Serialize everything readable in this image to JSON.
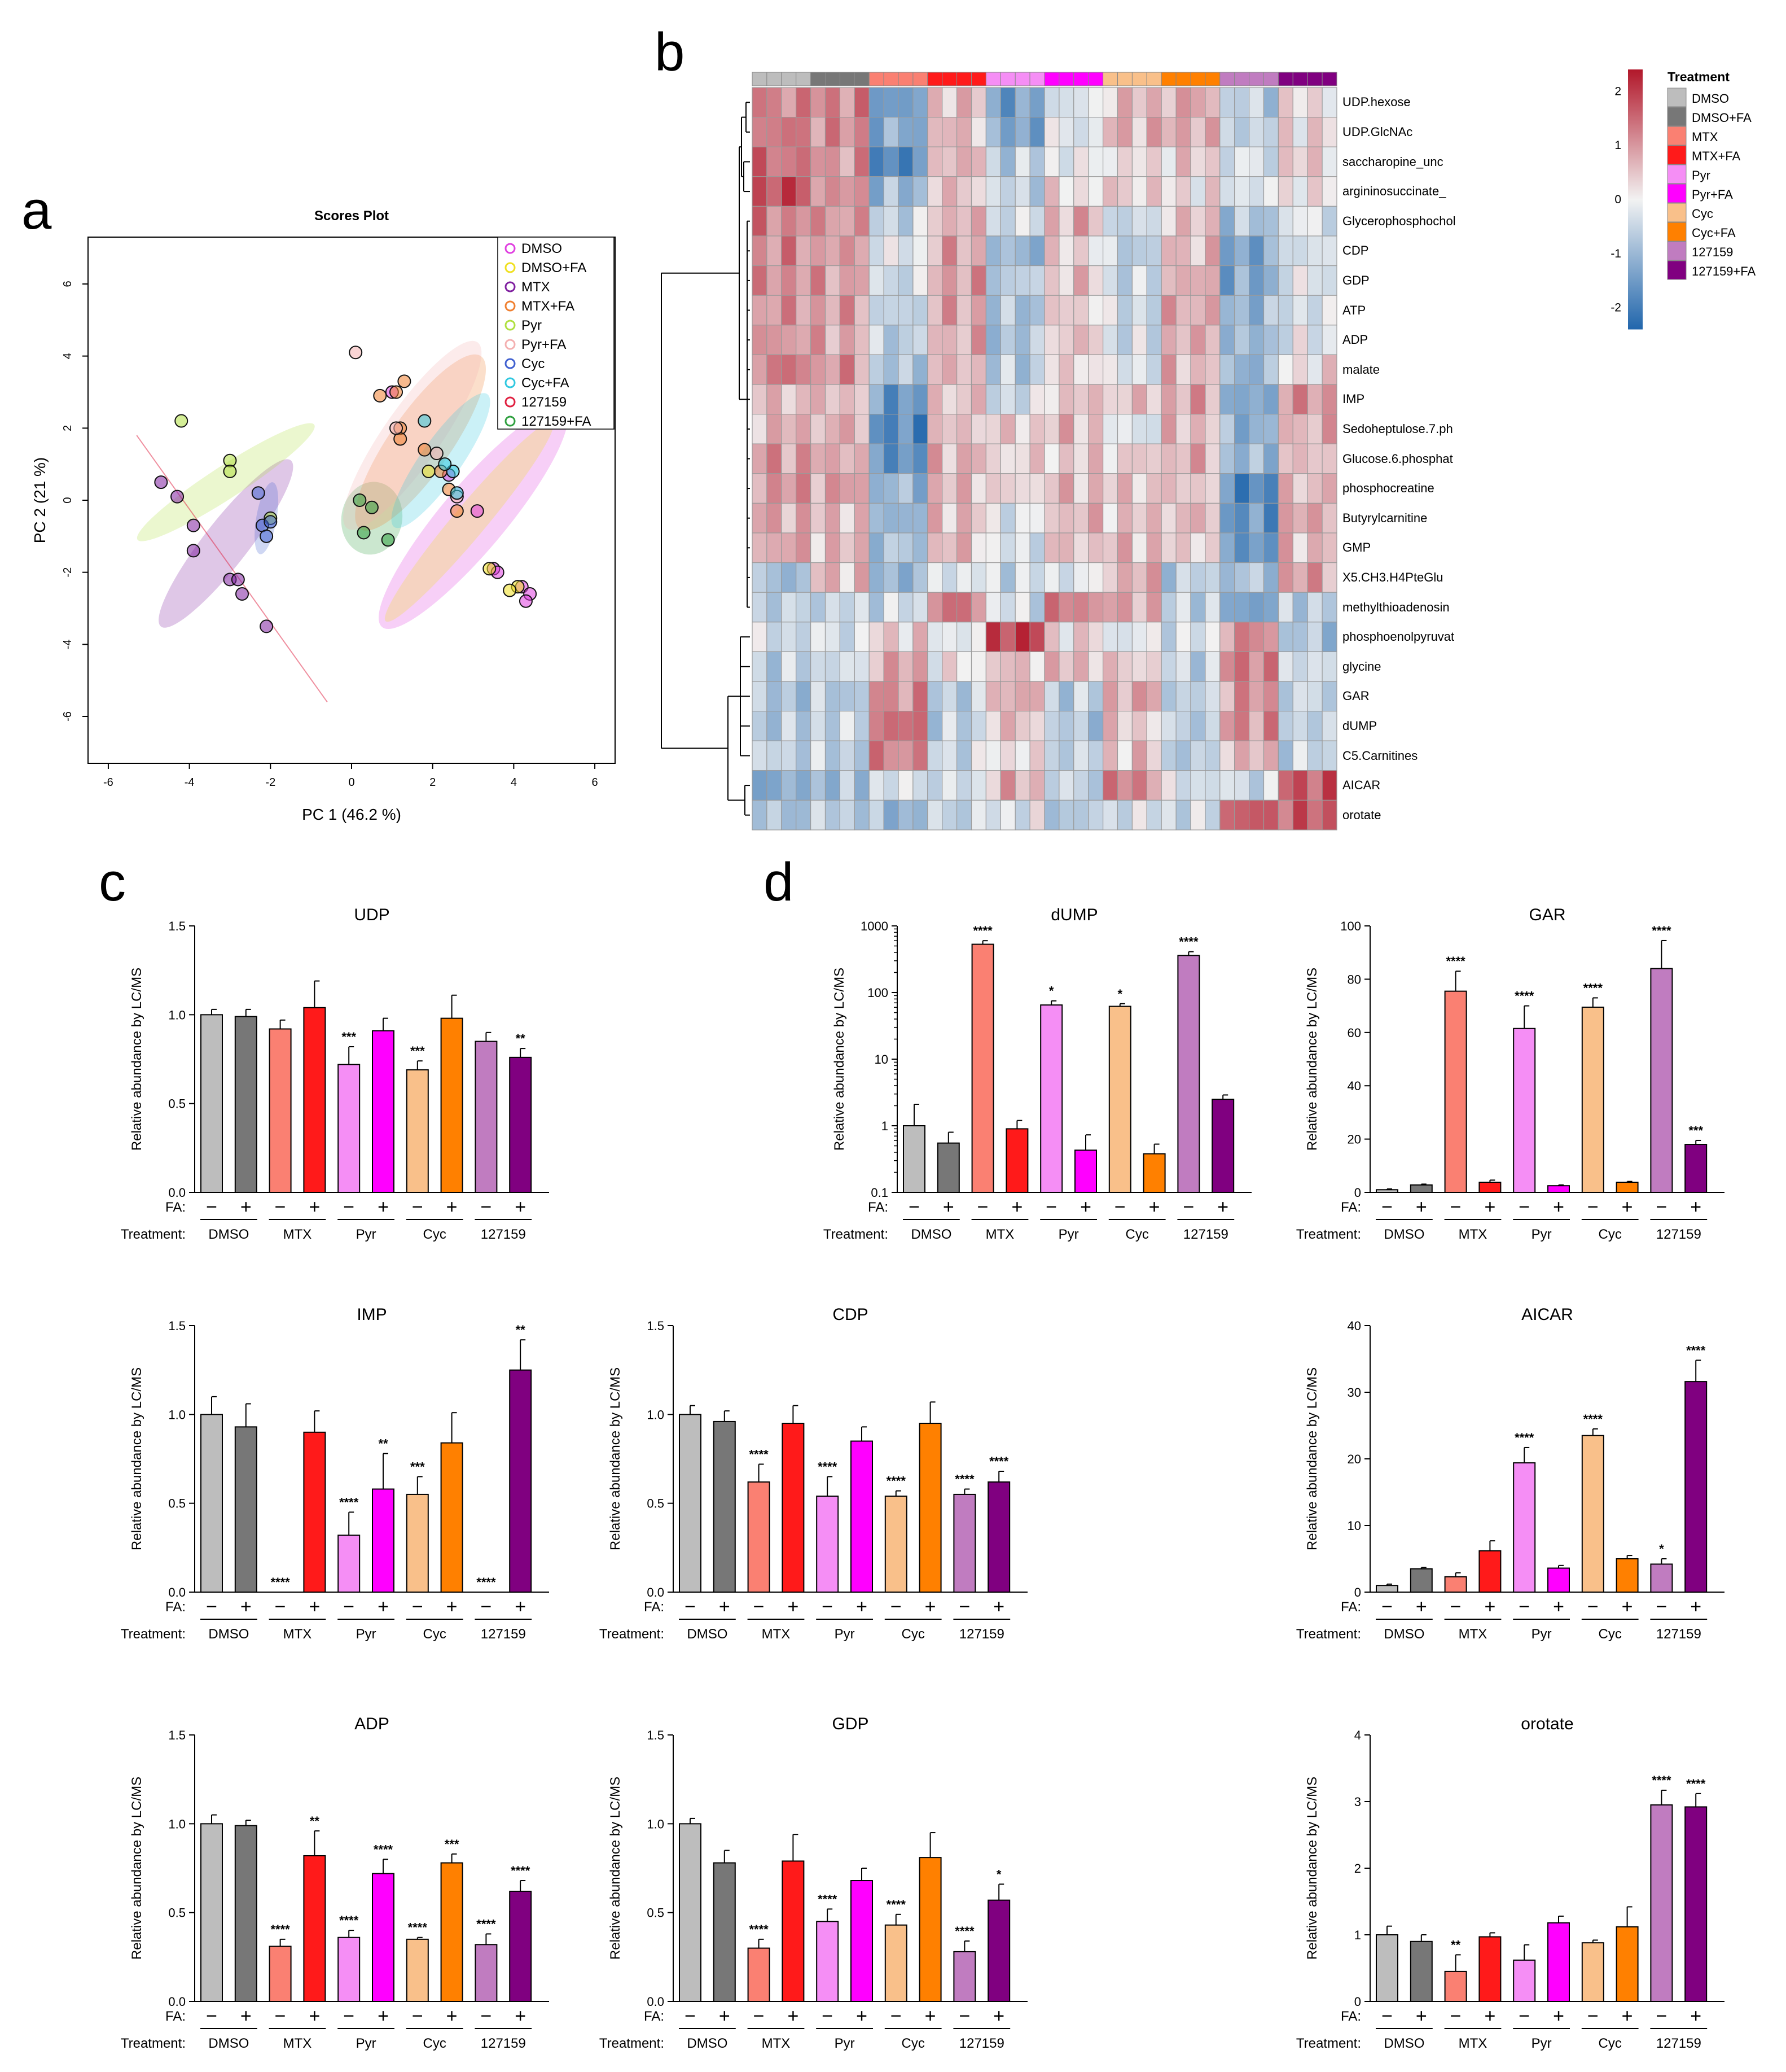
{
  "panels": {
    "a": "a",
    "b": "b",
    "c": "c",
    "d": "d"
  },
  "colors": {
    "DMSO": "#bdbdbd",
    "DMSO+FA": "#777777",
    "MTX": "#fa8072",
    "MTX+FA": "#ff1a1a",
    "Pyr": "#f58ef5",
    "Pyr+FA": "#ff00ff",
    "Cyc": "#f9c08a",
    "Cyc+FA": "#ff8000",
    "127159": "#c07cc0",
    "127159+FA": "#800080",
    "heat_low": "#2166ac",
    "heat_mid": "#f2f2f2",
    "heat_high": "#b2182b",
    "pca_DMSO": "#e040e0",
    "pca_DMSO+FA": "#f0e020",
    "pca_MTX": "#8020a0",
    "pca_MTX+FA": "#f08030",
    "pca_Pyr": "#b0e040",
    "pca_Pyr+FA": "#f4b0b0",
    "pca_Cyc": "#4060d0",
    "pca_Cyc+FA": "#30c8e0",
    "pca_127159": "#e02040",
    "pca_127159+FA": "#30a040"
  },
  "chart_data": [
    {
      "id": "scores",
      "type": "scatter",
      "title": "Scores Plot",
      "xlabel": "PC 1 (46.2 %)",
      "ylabel": "PC 2 (21 %)",
      "xlim": [
        -6.5,
        6.5
      ],
      "ylim": [
        -7.3,
        7.3
      ],
      "xticks": [
        -6,
        -4,
        -2,
        0,
        2,
        4,
        6
      ],
      "yticks": [
        -6,
        -4,
        -2,
        0,
        2,
        4,
        6
      ],
      "legend": [
        "DMSO",
        "DMSO+FA",
        "MTX",
        "MTX+FA",
        "Pyr",
        "Pyr+FA",
        "Cyc",
        "Cyc+FA",
        "127159",
        "127159+FA"
      ],
      "series": [
        {
          "name": "MTX",
          "points": [
            [
              -4.7,
              0.5
            ],
            [
              -4.3,
              0.1
            ],
            [
              -3.9,
              -0.7
            ],
            [
              -3.9,
              -1.4
            ],
            [
              -3.0,
              -2.2
            ],
            [
              -2.8,
              -2.2
            ],
            [
              -2.7,
              -2.6
            ],
            [
              -2.1,
              -3.5
            ]
          ]
        },
        {
          "name": "Pyr",
          "points": [
            [
              -4.2,
              2.2
            ],
            [
              -3.0,
              1.1
            ],
            [
              -3.0,
              0.8
            ],
            [
              -2.0,
              -0.5
            ]
          ]
        },
        {
          "name": "Cyc",
          "points": [
            [
              -2.3,
              0.2
            ],
            [
              -2.2,
              -0.7
            ],
            [
              -2.1,
              -1.0
            ],
            [
              -2.0,
              -0.6
            ]
          ]
        },
        {
          "name": "127159+FA",
          "points": [
            [
              0.2,
              0.0
            ],
            [
              0.5,
              -0.2
            ],
            [
              0.9,
              -1.1
            ],
            [
              0.3,
              -0.9
            ]
          ]
        },
        {
          "name": "DMSO",
          "points": [
            [
              3.1,
              -0.3
            ],
            [
              3.5,
              -1.9
            ],
            [
              3.6,
              -2.0
            ],
            [
              4.2,
              -2.4
            ],
            [
              4.4,
              -2.6
            ],
            [
              4.3,
              -2.8
            ],
            [
              2.4,
              0.7
            ],
            [
              1.0,
              3.0
            ]
          ]
        },
        {
          "name": "MTX+FA",
          "points": [
            [
              0.7,
              2.9
            ],
            [
              1.3,
              3.3
            ],
            [
              1.1,
              3.0
            ],
            [
              1.2,
              2.0
            ],
            [
              1.2,
              1.7
            ],
            [
              2.2,
              0.8
            ],
            [
              2.4,
              0.3
            ],
            [
              1.8,
              1.4
            ],
            [
              2.6,
              -0.3
            ]
          ]
        },
        {
          "name": "Pyr+FA",
          "points": [
            [
              0.1,
              4.1
            ],
            [
              1.1,
              2.0
            ],
            [
              2.1,
              1.3
            ],
            [
              2.6,
              0.1
            ]
          ]
        },
        {
          "name": "Cyc+FA",
          "points": [
            [
              1.8,
              2.2
            ],
            [
              2.5,
              0.8
            ],
            [
              2.3,
              1.0
            ],
            [
              2.6,
              0.2
            ]
          ]
        },
        {
          "name": "DMSO+FA",
          "points": [
            [
              3.4,
              -1.9
            ],
            [
              4.1,
              -2.4
            ],
            [
              3.9,
              -2.5
            ],
            [
              1.9,
              0.8
            ]
          ]
        }
      ]
    },
    {
      "id": "heatmap",
      "type": "heatmap",
      "legend_title": "Treatment",
      "legend_items": [
        "DMSO",
        "DMSO+FA",
        "MTX",
        "MTX+FA",
        "Pyr",
        "Pyr+FA",
        "Cyc",
        "Cyc+FA",
        "127159",
        "127159+FA"
      ],
      "colorbar_ticks": [
        "2",
        "1",
        "0",
        "-1",
        "-2"
      ],
      "metabolites": [
        "UDP.hexose",
        "UDP.GlcNAc",
        "saccharopine_unc",
        "argininosuccinate_",
        "Glycerophosphochol",
        "CDP",
        "GDP",
        "ATP",
        "ADP",
        "malate",
        "IMP",
        "Sedoheptulose.7.ph",
        "Glucose.6.phosphat",
        "phosphocreatine",
        "Butyrylcarnitine",
        "GMP",
        "X5.CH3.H4PteGlu",
        "methylthioadenosin",
        "phosphoenolpyruvat",
        "glycine",
        "GAR",
        "dUMP",
        "C5.Carnitines",
        "AICAR",
        "orotate"
      ],
      "group_profile": [
        [
          1.2,
          1.2,
          -1.4,
          0.6,
          -1.4,
          -0.3,
          0.6,
          0.8,
          -0.6,
          0.2
        ],
        [
          1.3,
          1.1,
          -1.2,
          0.6,
          -1.3,
          -0.2,
          0.7,
          0.8,
          -0.5,
          0.3
        ],
        [
          1.4,
          1.0,
          -1.8,
          0.7,
          -0.6,
          -0.1,
          0.2,
          0.4,
          -0.3,
          0.4
        ],
        [
          1.8,
          1.0,
          -1.0,
          0.5,
          -0.5,
          0.2,
          0.4,
          0.2,
          -0.2,
          0.2
        ],
        [
          1.2,
          1.0,
          -0.5,
          0.7,
          -0.3,
          0.7,
          -0.5,
          0.5,
          -0.8,
          -0.2
        ],
        [
          1.1,
          0.9,
          -0.2,
          0.8,
          -1.0,
          0.3,
          -0.6,
          0.6,
          -1.3,
          -0.3
        ],
        [
          1.1,
          0.9,
          -0.4,
          0.9,
          -0.6,
          0.5,
          -0.5,
          0.7,
          -1.3,
          -0.2
        ],
        [
          1.0,
          0.9,
          -0.6,
          0.8,
          -0.8,
          0.4,
          -0.4,
          0.8,
          -1.0,
          -0.3
        ],
        [
          1.0,
          0.8,
          -0.6,
          0.7,
          -0.8,
          0.5,
          -0.4,
          0.7,
          -1.0,
          -0.2
        ],
        [
          1.3,
          1.0,
          -0.8,
          0.6,
          -0.7,
          0.3,
          -0.2,
          0.6,
          -1.0,
          0.2
        ],
        [
          0.6,
          0.6,
          -1.5,
          0.5,
          -0.4,
          0.5,
          0.5,
          0.8,
          -1.3,
          1.0
        ],
        [
          0.7,
          0.7,
          -1.8,
          0.5,
          0.4,
          0.6,
          -0.2,
          0.6,
          -1.1,
          0.7
        ],
        [
          1.0,
          0.8,
          -1.6,
          0.7,
          0.3,
          0.4,
          0.4,
          0.7,
          -1.0,
          0.5
        ],
        [
          1.0,
          0.9,
          -1.0,
          0.6,
          0.3,
          0.6,
          0.5,
          0.5,
          -1.8,
          0.6
        ],
        [
          0.8,
          0.6,
          -1.0,
          0.6,
          -0.2,
          0.6,
          0.5,
          0.6,
          -1.6,
          0.8
        ],
        [
          0.8,
          0.6,
          -0.8,
          0.6,
          -0.3,
          0.5,
          0.6,
          0.4,
          -1.5,
          0.6
        ],
        [
          -0.9,
          0.6,
          -1.0,
          -0.2,
          -0.4,
          -0.2,
          0.7,
          -0.6,
          -0.8,
          0.9
        ],
        [
          -0.6,
          -0.5,
          -0.4,
          1.3,
          -0.3,
          1.2,
          0.8,
          -0.5,
          -1.3,
          -0.6
        ],
        [
          -0.4,
          -0.3,
          0.4,
          -0.1,
          2.0,
          0.3,
          -0.2,
          -0.3,
          1.1,
          -0.8
        ],
        [
          -0.6,
          -0.4,
          0.8,
          0.1,
          0.5,
          0.6,
          0.4,
          -0.5,
          1.3,
          -0.3
        ],
        [
          -0.8,
          -0.7,
          1.1,
          -0.6,
          0.8,
          -0.6,
          0.8,
          -0.6,
          1.0,
          -0.5
        ],
        [
          -0.7,
          -0.5,
          1.4,
          -0.6,
          0.5,
          -0.7,
          0.4,
          -0.6,
          1.1,
          -0.5
        ],
        [
          -0.5,
          -0.6,
          1.2,
          -0.4,
          0.2,
          -0.5,
          0.5,
          -0.7,
          0.6,
          -0.5
        ],
        [
          -1.2,
          -0.9,
          -0.3,
          -0.4,
          0.7,
          -0.5,
          1.2,
          -0.3,
          -0.4,
          1.7
        ],
        [
          -0.8,
          -0.6,
          -1.0,
          -0.5,
          -0.2,
          -0.7,
          -0.3,
          -0.4,
          1.6,
          1.6
        ]
      ]
    },
    {
      "id": "UDP",
      "type": "bar",
      "title": "UDP",
      "scale": "linear",
      "ylim": [
        0,
        1.5
      ],
      "yticks": [
        "0.0",
        "0.5",
        "1.0",
        "1.5"
      ],
      "values": [
        1.0,
        0.99,
        0.92,
        1.04,
        0.72,
        0.91,
        0.69,
        0.98,
        0.85,
        0.76
      ],
      "errors": [
        0.03,
        0.04,
        0.05,
        0.15,
        0.1,
        0.07,
        0.05,
        0.13,
        0.05,
        0.05
      ],
      "sig": [
        "",
        "",
        "",
        "",
        "***",
        "",
        "***",
        "",
        "",
        "**"
      ]
    },
    {
      "id": "dUMP",
      "type": "bar",
      "title": "dUMP",
      "scale": "log",
      "ylim": [
        0.1,
        1000
      ],
      "yticks": [
        "0.1",
        "1",
        "10",
        "100",
        "1000"
      ],
      "values": [
        1.0,
        0.55,
        530,
        0.9,
        65,
        0.43,
        62,
        0.38,
        360,
        2.5
      ],
      "errors": [
        1.1,
        0.25,
        70,
        0.3,
        10,
        0.3,
        6,
        0.15,
        50,
        0.4
      ],
      "sig": [
        "",
        "",
        "****",
        "",
        "*",
        "",
        "*",
        "",
        "****",
        ""
      ]
    },
    {
      "id": "GAR",
      "type": "bar",
      "title": "GAR",
      "scale": "linear",
      "ylim": [
        0,
        100
      ],
      "yticks": [
        "0",
        "20",
        "40",
        "60",
        "80",
        "100"
      ],
      "values": [
        1.0,
        2.8,
        75.5,
        3.8,
        61.5,
        2.5,
        69.5,
        3.8,
        84,
        18
      ],
      "errors": [
        0.3,
        0.3,
        7.5,
        0.8,
        8.5,
        0.3,
        3.5,
        0.3,
        10.5,
        1.5
      ],
      "sig": [
        "",
        "",
        "****",
        "",
        "****",
        "",
        "****",
        "",
        "****",
        "***"
      ]
    },
    {
      "id": "IMP",
      "type": "bar",
      "title": "IMP",
      "scale": "linear",
      "ylim": [
        0,
        1.5
      ],
      "yticks": [
        "0.0",
        "0.5",
        "1.0",
        "1.5"
      ],
      "values": [
        1.0,
        0.93,
        0.0,
        0.9,
        0.32,
        0.58,
        0.55,
        0.84,
        0.0,
        1.25
      ],
      "errors": [
        0.1,
        0.13,
        0.0,
        0.12,
        0.13,
        0.2,
        0.1,
        0.17,
        0.0,
        0.17
      ],
      "sig": [
        "",
        "",
        "****",
        "",
        "****",
        "**",
        "***",
        "",
        "****",
        "**"
      ]
    },
    {
      "id": "CDP",
      "type": "bar",
      "title": "CDP",
      "scale": "linear",
      "ylim": [
        0,
        1.5
      ],
      "yticks": [
        "0.0",
        "0.5",
        "1.0",
        "1.5"
      ],
      "values": [
        1.0,
        0.96,
        0.62,
        0.95,
        0.54,
        0.85,
        0.54,
        0.95,
        0.55,
        0.62
      ],
      "errors": [
        0.05,
        0.06,
        0.1,
        0.1,
        0.11,
        0.08,
        0.03,
        0.12,
        0.03,
        0.06
      ],
      "sig": [
        "",
        "",
        "****",
        "",
        "****",
        "",
        "****",
        "",
        "****",
        "****"
      ]
    },
    {
      "id": "AICAR",
      "type": "bar",
      "title": "AICAR",
      "scale": "linear",
      "ylim": [
        0,
        40
      ],
      "yticks": [
        "0",
        "10",
        "20",
        "30",
        "40"
      ],
      "values": [
        1.0,
        3.5,
        2.3,
        6.2,
        19.4,
        3.6,
        23.5,
        5.0,
        4.2,
        31.6
      ],
      "errors": [
        0.2,
        0.2,
        0.6,
        1.5,
        2.3,
        0.4,
        1.0,
        0.5,
        0.8,
        3.2
      ],
      "sig": [
        "",
        "",
        "",
        "",
        "****",
        "",
        "****",
        "",
        "*",
        "****"
      ]
    },
    {
      "id": "ADP",
      "type": "bar",
      "title": "ADP",
      "scale": "linear",
      "ylim": [
        0,
        1.5
      ],
      "yticks": [
        "0.0",
        "0.5",
        "1.0",
        "1.5"
      ],
      "values": [
        1.0,
        0.99,
        0.31,
        0.82,
        0.36,
        0.72,
        0.35,
        0.78,
        0.32,
        0.62
      ],
      "errors": [
        0.05,
        0.03,
        0.04,
        0.14,
        0.04,
        0.08,
        0.01,
        0.05,
        0.06,
        0.06
      ],
      "sig": [
        "",
        "",
        "****",
        "**",
        "****",
        "****",
        "****",
        "***",
        "****",
        "****"
      ]
    },
    {
      "id": "GDP",
      "type": "bar",
      "title": "GDP",
      "scale": "linear",
      "ylim": [
        0,
        1.5
      ],
      "yticks": [
        "0.0",
        "0.5",
        "1.0",
        "1.5"
      ],
      "values": [
        1.0,
        0.78,
        0.3,
        0.79,
        0.45,
        0.68,
        0.43,
        0.81,
        0.28,
        0.57
      ],
      "errors": [
        0.03,
        0.07,
        0.05,
        0.15,
        0.07,
        0.07,
        0.06,
        0.14,
        0.06,
        0.09
      ],
      "sig": [
        "",
        "",
        "****",
        "",
        "****",
        "",
        "****",
        "",
        "****",
        "*"
      ]
    },
    {
      "id": "orotate",
      "type": "bar",
      "title": "orotate",
      "scale": "linear",
      "ylim": [
        0,
        4
      ],
      "yticks": [
        "0",
        "1",
        "2",
        "3",
        "4"
      ],
      "values": [
        1.0,
        0.9,
        0.45,
        0.97,
        0.62,
        1.18,
        0.88,
        1.12,
        2.95,
        2.92
      ],
      "errors": [
        0.13,
        0.1,
        0.25,
        0.06,
        0.23,
        0.1,
        0.04,
        0.3,
        0.22,
        0.2
      ],
      "sig": [
        "",
        "",
        "**",
        "",
        "",
        "",
        "",
        "",
        "****",
        "****"
      ]
    }
  ],
  "bar_common": {
    "ylabel": "Relative abundance by LC/MS",
    "fa_label": "FA:",
    "treatment_label": "Treatment:",
    "minus": "−",
    "plus": "+",
    "group_labels": [
      "DMSO",
      "MTX",
      "Pyr",
      "Cyc",
      "127159"
    ],
    "bar_color_keys": [
      "DMSO",
      "DMSO+FA",
      "MTX",
      "MTX+FA",
      "Pyr",
      "Pyr+FA",
      "Cyc",
      "Cyc+FA",
      "127159",
      "127159+FA"
    ]
  }
}
